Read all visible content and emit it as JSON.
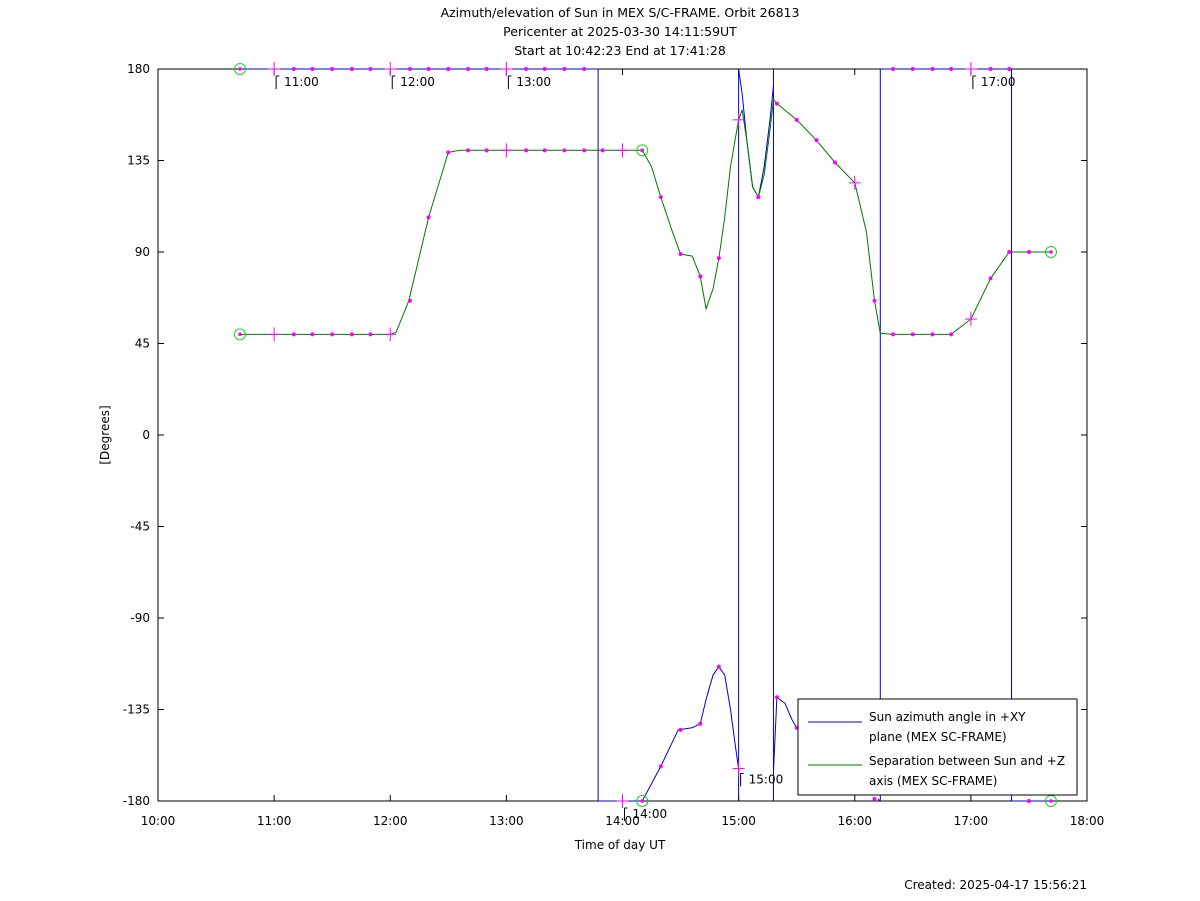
{
  "chart_data": {
    "type": "line",
    "title": [
      "Azimuth/elevation of Sun in MEX S/C-FRAME.  Orbit 26813",
      "Pericenter at 2025-03-30 14:11:59UT",
      "Start at 10:42:23 End at 17:41:28"
    ],
    "xlabel": "Time of day UT",
    "ylabel": "[Degrees]",
    "xlim": [
      10.0,
      18.0
    ],
    "ylim": [
      -180,
      180
    ],
    "xticks": [
      "10:00",
      "11:00",
      "12:00",
      "13:00",
      "14:00",
      "15:00",
      "16:00",
      "17:00",
      "18:00"
    ],
    "yticks": [
      "180",
      "135",
      "90",
      "45",
      "0",
      "-45",
      "-90",
      "-135",
      "-180"
    ],
    "grid": false,
    "legend_position": "bottom-right",
    "created": "Created: 2025-04-17 15:56:21",
    "hour_annotations": [
      {
        "label": "11:00",
        "x": 11.0,
        "y": 180
      },
      {
        "label": "12:00",
        "x": 12.0,
        "y": 180
      },
      {
        "label": "13:00",
        "x": 13.0,
        "y": 180
      },
      {
        "label": "14:00",
        "x": 14.0,
        "y": -180
      },
      {
        "label": "15:00",
        "x": 15.0,
        "y": -163
      },
      {
        "label": "17:00",
        "x": 17.0,
        "y": 180
      }
    ],
    "series": [
      {
        "name": "Sun azimuth angle in +XY plane (MEX SC-FRAME)",
        "color": "#0000cc",
        "segments": [
          [
            [
              10.706,
              180
            ],
            [
              13.79,
              180
            ]
          ],
          [
            [
              13.79,
              -180
            ],
            [
              14.17,
              -180
            ],
            [
              14.33,
              -163
            ],
            [
              14.48,
              -145
            ],
            [
              14.6,
              -144
            ],
            [
              14.67,
              -142
            ],
            [
              14.72,
              -130
            ],
            [
              14.78,
              -118
            ],
            [
              14.83,
              -114
            ],
            [
              14.88,
              -118
            ],
            [
              14.93,
              -135
            ],
            [
              14.97,
              -152
            ],
            [
              15.0,
              -164
            ]
          ],
          [
            [
              15.0,
              180
            ],
            [
              15.03,
              168
            ],
            [
              15.07,
              145
            ],
            [
              15.12,
              122
            ],
            [
              15.17,
              117
            ],
            [
              15.22,
              132
            ],
            [
              15.27,
              155
            ],
            [
              15.3,
              172
            ]
          ],
          [
            [
              15.3,
              -165
            ],
            [
              15.33,
              -129
            ],
            [
              15.4,
              -132
            ],
            [
              15.46,
              -140
            ],
            [
              15.5,
              -144
            ]
          ],
          [
            [
              16.2,
              -179
            ],
            [
              16.22,
              -180
            ]
          ],
          [
            [
              16.22,
              180
            ],
            [
              17.35,
              180
            ]
          ],
          [
            [
              17.35,
              -180
            ],
            [
              17.69,
              -180
            ]
          ]
        ]
      },
      {
        "name": "Separation between Sun and +Z axis (MEX SC-FRAME)",
        "color": "#007700",
        "points": [
          [
            10.706,
            49.5
          ],
          [
            11.0,
            49.5
          ],
          [
            11.5,
            49.5
          ],
          [
            12.0,
            49.5
          ],
          [
            12.05,
            50.5
          ],
          [
            12.16,
            66
          ],
          [
            12.33,
            107
          ],
          [
            12.5,
            139
          ],
          [
            12.6,
            140
          ],
          [
            13.0,
            140
          ],
          [
            13.5,
            140
          ],
          [
            14.0,
            140
          ],
          [
            14.17,
            140
          ],
          [
            14.25,
            132
          ],
          [
            14.33,
            117
          ],
          [
            14.43,
            100
          ],
          [
            14.5,
            89
          ],
          [
            14.6,
            88
          ],
          [
            14.67,
            78
          ],
          [
            14.72,
            62
          ],
          [
            14.78,
            72
          ],
          [
            14.83,
            87
          ],
          [
            14.88,
            107
          ],
          [
            14.93,
            132
          ],
          [
            15.0,
            155
          ],
          [
            15.03,
            160
          ],
          [
            15.07,
            145
          ],
          [
            15.12,
            122
          ],
          [
            15.17,
            117
          ],
          [
            15.22,
            128
          ],
          [
            15.27,
            150
          ],
          [
            15.3,
            165
          ],
          [
            15.33,
            163
          ],
          [
            15.5,
            155
          ],
          [
            15.67,
            145
          ],
          [
            15.83,
            134
          ],
          [
            16.0,
            124
          ],
          [
            16.1,
            100
          ],
          [
            16.17,
            66
          ],
          [
            16.22,
            50
          ],
          [
            16.33,
            49.5
          ],
          [
            16.5,
            49.5
          ],
          [
            16.83,
            49.5
          ],
          [
            17.0,
            57
          ],
          [
            17.17,
            77
          ],
          [
            17.33,
            90
          ],
          [
            17.5,
            90
          ],
          [
            17.69,
            90
          ]
        ]
      }
    ],
    "markers": [
      {
        "kind": "circle",
        "points": [
          [
            10.706,
            180
          ],
          [
            10.706,
            49.5
          ],
          [
            14.17,
            140
          ],
          [
            14.17,
            -180
          ],
          [
            17.69,
            90
          ],
          [
            17.69,
            -180
          ]
        ]
      },
      {
        "kind": "cross",
        "points": [
          [
            11.0,
            180
          ],
          [
            12.0,
            180
          ],
          [
            13.0,
            180
          ],
          [
            11.0,
            49.5
          ],
          [
            12.0,
            49.5
          ],
          [
            13.0,
            140
          ],
          [
            14.0,
            140
          ],
          [
            14.0,
            -180
          ],
          [
            15.0,
            155
          ],
          [
            15.0,
            -164
          ],
          [
            16.0,
            124
          ],
          [
            17.0,
            180
          ],
          [
            17.0,
            57
          ]
        ]
      },
      {
        "kind": "dot",
        "points": [
          [
            11.17,
            180
          ],
          [
            11.33,
            180
          ],
          [
            11.5,
            180
          ],
          [
            11.67,
            180
          ],
          [
            11.83,
            180
          ],
          [
            12.17,
            180
          ],
          [
            12.33,
            180
          ],
          [
            12.5,
            180
          ],
          [
            12.67,
            180
          ],
          [
            12.83,
            180
          ],
          [
            13.17,
            180
          ],
          [
            13.33,
            180
          ],
          [
            13.5,
            180
          ],
          [
            13.67,
            180
          ],
          [
            16.33,
            180
          ],
          [
            16.5,
            180
          ],
          [
            16.67,
            180
          ],
          [
            16.83,
            180
          ],
          [
            17.17,
            180
          ],
          [
            17.33,
            180
          ],
          [
            11.17,
            49.5
          ],
          [
            11.33,
            49.5
          ],
          [
            11.5,
            49.5
          ],
          [
            11.67,
            49.5
          ],
          [
            11.83,
            49.5
          ],
          [
            12.17,
            66
          ],
          [
            12.33,
            107
          ],
          [
            12.5,
            139
          ],
          [
            12.67,
            140
          ],
          [
            12.83,
            140
          ],
          [
            13.17,
            140
          ],
          [
            13.33,
            140
          ],
          [
            13.5,
            140
          ],
          [
            13.67,
            140
          ],
          [
            13.83,
            140
          ],
          [
            14.33,
            117
          ],
          [
            14.5,
            89
          ],
          [
            14.67,
            78
          ],
          [
            14.83,
            87
          ],
          [
            15.17,
            117
          ],
          [
            15.33,
            163
          ],
          [
            15.5,
            155
          ],
          [
            15.67,
            145
          ],
          [
            15.83,
            134
          ],
          [
            16.17,
            66
          ],
          [
            16.33,
            49.5
          ],
          [
            16.5,
            49.5
          ],
          [
            16.67,
            49.5
          ],
          [
            16.83,
            49.5
          ],
          [
            17.17,
            77
          ],
          [
            17.33,
            90
          ],
          [
            17.5,
            90
          ],
          [
            14.33,
            -163
          ],
          [
            14.5,
            -145
          ],
          [
            14.67,
            -142
          ],
          [
            14.83,
            -114
          ],
          [
            15.17,
            117
          ],
          [
            15.33,
            -129
          ],
          [
            15.5,
            -144
          ],
          [
            16.17,
            -179
          ],
          [
            17.5,
            -180
          ]
        ]
      }
    ]
  }
}
